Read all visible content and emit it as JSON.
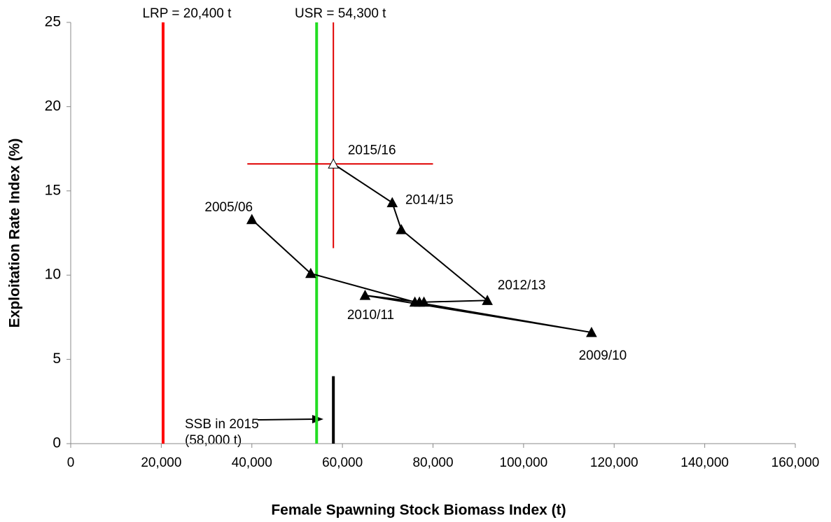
{
  "chart_data": {
    "type": "line",
    "x_label": "Female Spawning Stock Biomass Index (t)",
    "y_label": "Exploitation Rate Index (%)",
    "xlim": [
      0,
      160000
    ],
    "ylim": [
      0,
      25
    ],
    "xticks": [
      0,
      {
        "value": 20000,
        "label": "20,000"
      },
      {
        "value": 40000,
        "label": "40,000"
      },
      {
        "value": 60000,
        "label": "60,000"
      },
      {
        "value": 80000,
        "label": "80,000"
      },
      {
        "value": 100000,
        "label": "100,000"
      },
      {
        "value": 120000,
        "label": "120,000"
      },
      {
        "value": 140000,
        "label": "140,000"
      },
      {
        "value": 160000,
        "label": "160,000"
      }
    ],
    "yticks": [
      0,
      5,
      10,
      15,
      20,
      25
    ],
    "grid": false,
    "series": [
      {
        "color": "#000000",
        "x": [
          40000,
          53000,
          76000,
          115000,
          65000,
          77000,
          78000,
          92000,
          73000,
          71000,
          58000
        ],
        "values": [
          13.3,
          10.1,
          8.4,
          6.6,
          8.8,
          8.4,
          8.4,
          8.5,
          12.7,
          14.3,
          16.6
        ],
        "labels": [
          "2005/06",
          null,
          null,
          "2009/10",
          "2010/11",
          null,
          null,
          "2012/13",
          null,
          "2014/15",
          "2015/16"
        ]
      }
    ],
    "crosshair": {
      "color": "#e00000",
      "x": [
        39000,
        80000
      ],
      "y": [
        11.6,
        25
      ]
    },
    "reference_lines": [
      {
        "label": "LRP = 20,400 t",
        "x": 20400,
        "color": "#ff0000"
      },
      {
        "label": "USR = 54,300 t",
        "x": 54300,
        "color": "#22dd22"
      }
    ],
    "ssb_bar": {
      "x": 58000,
      "values": [
        0,
        4
      ],
      "color": "#000000"
    },
    "annotation": [
      "SSB in 2015",
      "(58,000 t)"
    ]
  }
}
